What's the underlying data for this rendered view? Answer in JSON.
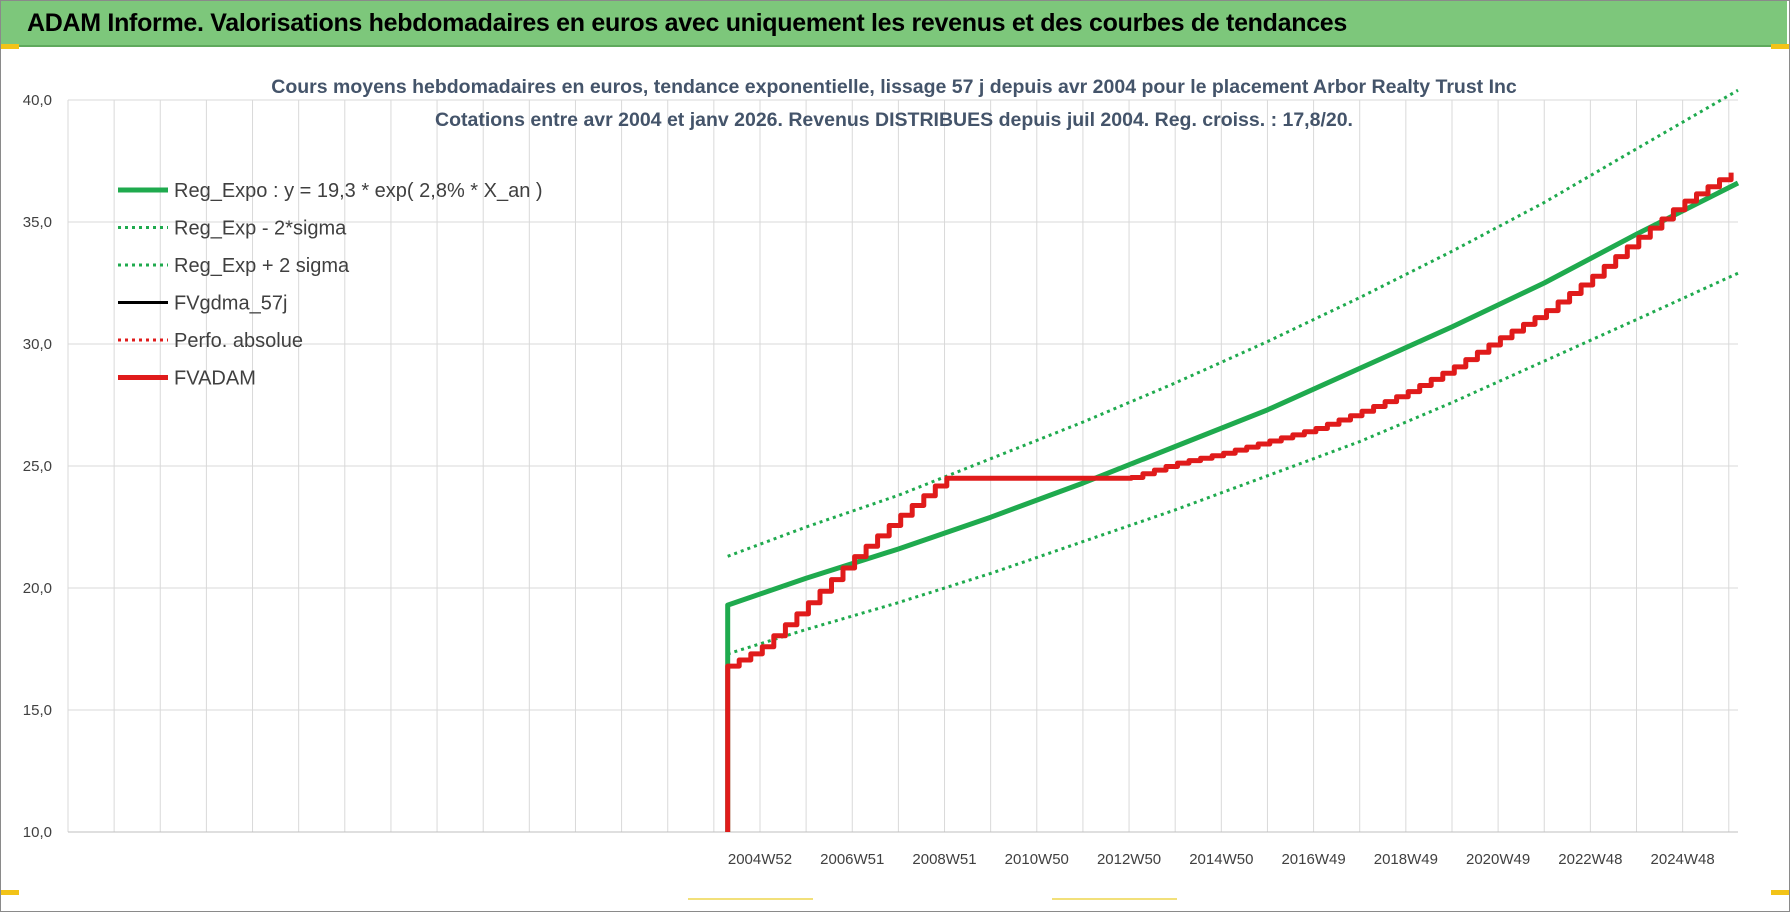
{
  "banner": {
    "title": "ADAM Informe. Valorisations hebdomadaires en euros avec uniquement les revenus et des courbes de tendances"
  },
  "colors": {
    "banner_bg": "#7dc77b",
    "trend_green": "#1faa4e",
    "adam_red": "#e01b1b",
    "title_text": "#44546a",
    "grid": "#d9d9d9"
  },
  "chart_data": {
    "type": "line",
    "title": "Cours moyens hebdomadaires en euros, tendance exponentielle, lissage 57 j depuis avr 2004 pour le placement Arbor Realty Trust Inc",
    "subtitle": "Cotations entre avr 2004 et janv 2026. Revenus DISTRIBUES depuis juil 2004. Reg. croiss. : 17,8/20.",
    "xlabel": "",
    "ylabel": "",
    "ylim": [
      10,
      40
    ],
    "xlim": [
      1990.0,
      2026.2
    ],
    "y_ticks": [
      "10,0",
      "15,0",
      "20,0",
      "25,0",
      "30,0",
      "35,0",
      "40,0"
    ],
    "x_ticks": [
      {
        "label": "2004W52",
        "x": 2005.0
      },
      {
        "label": "2006W51",
        "x": 2007.0
      },
      {
        "label": "2008W51",
        "x": 2009.0
      },
      {
        "label": "2010W50",
        "x": 2011.0
      },
      {
        "label": "2012W50",
        "x": 2013.0
      },
      {
        "label": "2014W50",
        "x": 2015.0
      },
      {
        "label": "2016W49",
        "x": 2017.0
      },
      {
        "label": "2018W49",
        "x": 2019.0
      },
      {
        "label": "2020W49",
        "x": 2021.0
      },
      {
        "label": "2022W48",
        "x": 2023.0
      },
      {
        "label": "2024W48",
        "x": 2025.0
      }
    ],
    "grid": true,
    "legend_position": "top-left",
    "series": [
      {
        "name": "Reg_Expo : y = 19,3 * exp( 2,8% *  X_an )",
        "style": "solid-thick",
        "color": "#1faa4e",
        "x": [
          2004.3,
          2004.3,
          2006,
          2008,
          2010,
          2012,
          2014,
          2016,
          2018,
          2020,
          2022,
          2024,
          2026.2
        ],
        "values": [
          10.0,
          19.3,
          20.4,
          21.6,
          22.9,
          24.3,
          25.8,
          27.3,
          29.0,
          30.7,
          32.5,
          34.5,
          36.6
        ]
      },
      {
        "name": "Reg_Exp - 2*sigma",
        "style": "dotted",
        "color": "#1faa4e",
        "x": [
          2004.3,
          2006,
          2008,
          2010,
          2012,
          2014,
          2016,
          2018,
          2020,
          2022,
          2024,
          2026.2
        ],
        "values": [
          17.3,
          18.3,
          19.4,
          20.6,
          21.9,
          23.2,
          24.6,
          26.0,
          27.6,
          29.3,
          31.0,
          32.9
        ]
      },
      {
        "name": "Reg_Exp + 2 sigma",
        "style": "dotted",
        "color": "#1faa4e",
        "x": [
          2004.3,
          2006,
          2008,
          2010,
          2012,
          2014,
          2016,
          2018,
          2020,
          2022,
          2024,
          2026.2
        ],
        "values": [
          21.3,
          22.5,
          23.8,
          25.3,
          26.8,
          28.4,
          30.1,
          31.9,
          33.8,
          35.8,
          38.0,
          40.4
        ]
      },
      {
        "name": "FVgdma_57j",
        "style": "solid",
        "color": "#000000",
        "x": [],
        "values": []
      },
      {
        "name": "Perfo. absolue",
        "style": "dotted",
        "color": "#e01b1b",
        "x": [],
        "values": []
      },
      {
        "name": "FVADAM",
        "style": "solid-thick",
        "color": "#e01b1b",
        "step": 0.25,
        "x": [
          2004.3,
          2004.3,
          2005.0,
          2006.0,
          2007.0,
          2008.0,
          2009.0,
          2011.0,
          2013.0,
          2014.0,
          2015.0,
          2016.0,
          2017.0,
          2018.0,
          2019.0,
          2020.0,
          2021.0,
          2022.0,
          2023.0,
          2024.0,
          2025.0,
          2026.2
        ],
        "values": [
          10.0,
          16.8,
          17.5,
          19.3,
          21.2,
          22.9,
          24.5,
          24.5,
          24.5,
          25.1,
          25.5,
          26.0,
          26.5,
          27.2,
          28.0,
          29.0,
          30.2,
          31.3,
          32.7,
          34.3,
          35.8,
          37.2
        ]
      }
    ]
  }
}
